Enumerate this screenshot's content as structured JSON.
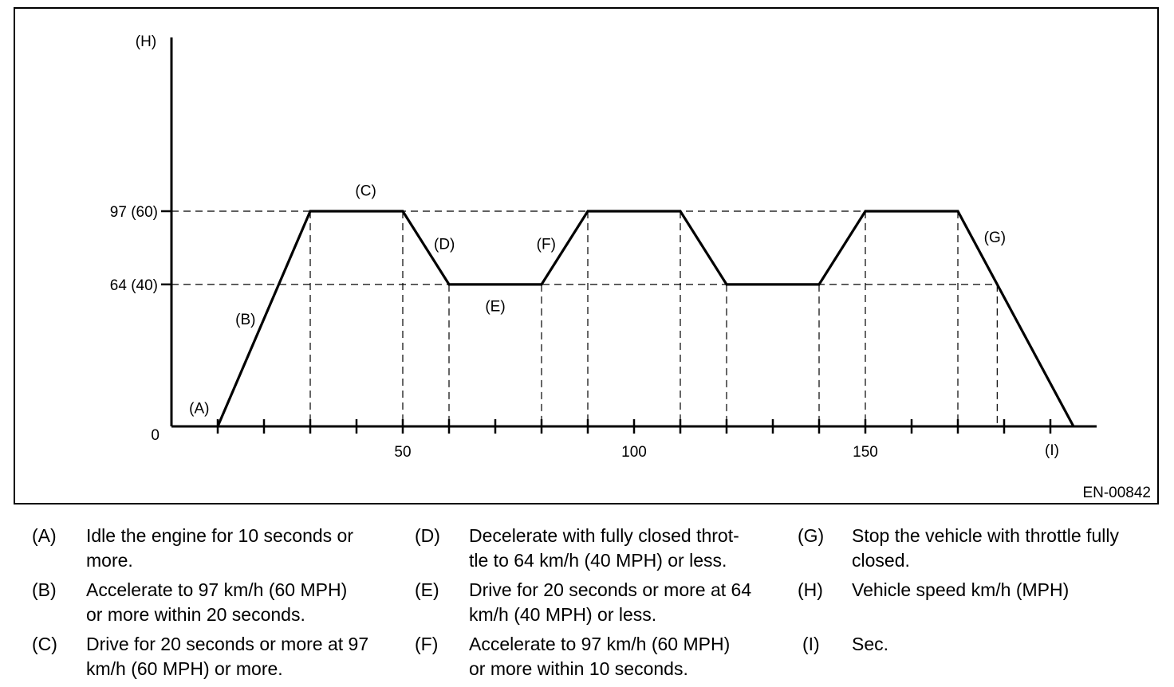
{
  "figure_id": "EN-00842",
  "chart_data": {
    "type": "line",
    "title": "",
    "ylabel": "(H)",
    "xlabel": "(I)",
    "xlim": [
      0,
      200
    ],
    "ylim": [
      0,
      150
    ],
    "x_tick_labels": [
      "50",
      "100",
      "150"
    ],
    "y_ticks": [
      {
        "value": 0,
        "label": "0"
      },
      {
        "value": 64,
        "label": "64 (40)"
      },
      {
        "value": 97,
        "label": "97 (60)"
      }
    ],
    "series": [
      {
        "x": [
          10,
          30,
          50,
          60,
          80,
          90,
          110,
          120,
          140,
          150,
          170,
          195
        ],
        "y": [
          0,
          97,
          97,
          64,
          64,
          97,
          97,
          64,
          64,
          97,
          97,
          0
        ]
      }
    ],
    "segment_labels": [
      {
        "text": "(A)",
        "x": 6,
        "y": 6
      },
      {
        "text": "(B)",
        "x": 16,
        "y": 46
      },
      {
        "text": "(C)",
        "x": 42,
        "y": 104
      },
      {
        "text": "(D)",
        "x": 59,
        "y": 80
      },
      {
        "text": "(E)",
        "x": 70,
        "y": 52
      },
      {
        "text": "(F)",
        "x": 81,
        "y": 80
      },
      {
        "text": "(G)",
        "x": 178,
        "y": 83
      }
    ]
  },
  "legend": [
    {
      "key": "(A)",
      "text": "Idle the engine for 10 seconds or\nmore."
    },
    {
      "key": "(B)",
      "text": "Accelerate to 97 km/h (60 MPH)\nor more within 20 seconds."
    },
    {
      "key": "(C)",
      "text": "Drive for 20 seconds or more at 97\nkm/h (60 MPH) or more."
    },
    {
      "key": "(D)",
      "text": "Decelerate with fully closed throt-\ntle to 64 km/h (40 MPH) or less."
    },
    {
      "key": "(E)",
      "text": "Drive for 20 seconds or more at 64\nkm/h (40 MPH) or less."
    },
    {
      "key": "(F)",
      "text": "Accelerate to 97 km/h (60 MPH)\nor more within 10 seconds."
    },
    {
      "key": "(G)",
      "text": "Stop the vehicle with throttle fully\nclosed."
    },
    {
      "key": "(H)",
      "text": "Vehicle speed km/h (MPH)"
    },
    {
      "key": "(I)",
      "text": "Sec."
    }
  ]
}
